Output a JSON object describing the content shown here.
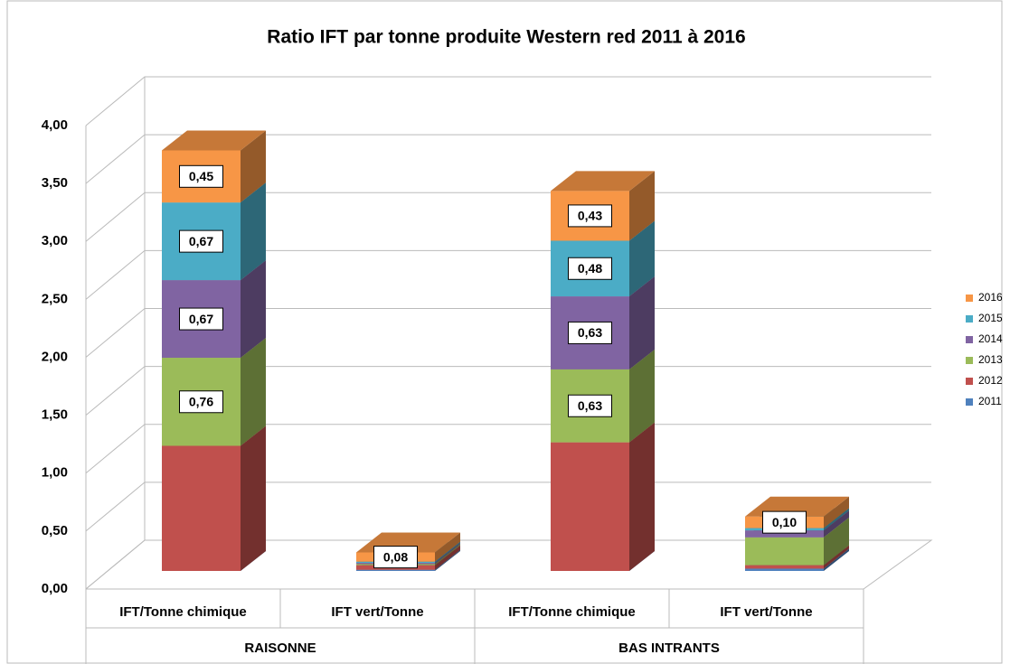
{
  "chart_data": {
    "type": "bar3d_stacked",
    "title": "Ratio IFT par tonne produite Western red 2011 à 2016",
    "categories": [
      "IFT/Tonne chimique",
      "IFT vert/Tonne",
      "IFT/Tonne chimique",
      "IFT vert/Tonne"
    ],
    "groups": [
      "RAISONNE",
      "BAS INTRANTS"
    ],
    "series": [
      {
        "name": "2011",
        "color": "#4f81bd",
        "values": [
          0,
          0.01,
          0,
          0.02
        ]
      },
      {
        "name": "2012",
        "color": "#c0504d",
        "values": [
          1.08,
          0.04,
          1.11,
          0.03
        ]
      },
      {
        "name": "2013",
        "color": "#9bbb59",
        "values": [
          0.76,
          0.01,
          0.63,
          0.24
        ],
        "value_labels": [
          "0,76",
          null,
          "0,63",
          null
        ]
      },
      {
        "name": "2014",
        "color": "#8064a2",
        "values": [
          0.67,
          0.01,
          0.63,
          0.06
        ],
        "value_labels": [
          "0,67",
          null,
          "0,63",
          null
        ]
      },
      {
        "name": "2015",
        "color": "#4bacc6",
        "values": [
          0.67,
          0.01,
          0.48,
          0.02
        ],
        "value_labels": [
          "0,67",
          null,
          "0,48",
          null
        ]
      },
      {
        "name": "2016",
        "color": "#f79646",
        "values": [
          0.45,
          0.08,
          0.43,
          0.1
        ],
        "value_labels": [
          "0,45",
          "0,08",
          "0,43",
          "0,10"
        ]
      }
    ],
    "ylim": [
      0,
      4
    ],
    "yticks": [
      {
        "value": 0,
        "label": "0,00"
      },
      {
        "value": 0.5,
        "label": "0,50"
      },
      {
        "value": 1,
        "label": "1,00"
      },
      {
        "value": 1.5,
        "label": "1,50"
      },
      {
        "value": 2,
        "label": "2,00"
      },
      {
        "value": 2.5,
        "label": "2,50"
      },
      {
        "value": 3,
        "label": "3,00"
      },
      {
        "value": 3.5,
        "label": "3,50"
      },
      {
        "value": 4,
        "label": "4,00"
      }
    ],
    "grid": true,
    "legend": "right"
  }
}
